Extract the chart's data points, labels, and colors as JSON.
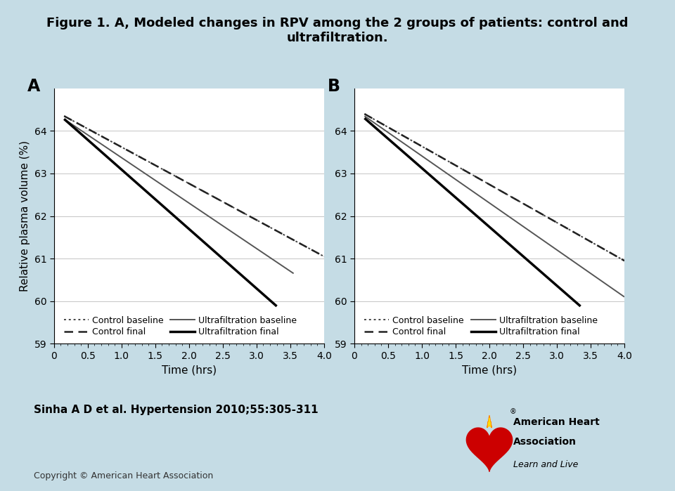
{
  "title": "Figure 1. A, Modeled changes in RPV among the 2 groups of patients: control and\nultrafiltration.",
  "background_color": "#c5dce5",
  "plot_bg": "#ffffff",
  "ylabel": "Relative plasma volume (%)",
  "xlabel": "Time (hrs)",
  "ylim": [
    59,
    65.0
  ],
  "xlim": [
    0,
    4.0
  ],
  "yticks": [
    59,
    60,
    61,
    62,
    63,
    64
  ],
  "xticks": [
    0,
    0.5,
    1.0,
    1.5,
    2.0,
    2.5,
    3.0,
    3.5,
    4.0
  ],
  "panel_A": {
    "label": "A",
    "control_baseline": {
      "x": [
        0.15,
        4.0
      ],
      "y": [
        64.35,
        61.05
      ],
      "style": "dotted",
      "color": "#444444",
      "lw": 1.4
    },
    "control_final": {
      "x": [
        0.15,
        4.0
      ],
      "y": [
        64.35,
        61.05
      ],
      "style": "dashed",
      "color": "#222222",
      "lw": 1.8
    },
    "uf_baseline": {
      "x": [
        0.15,
        3.55
      ],
      "y": [
        64.28,
        60.65
      ],
      "style": "solid",
      "color": "#555555",
      "lw": 1.4
    },
    "uf_final": {
      "x": [
        0.15,
        3.3
      ],
      "y": [
        64.28,
        59.88
      ],
      "style": "solid",
      "color": "#000000",
      "lw": 2.5
    }
  },
  "panel_B": {
    "label": "B",
    "control_baseline": {
      "x": [
        0.15,
        4.0
      ],
      "y": [
        64.4,
        60.95
      ],
      "style": "dotted",
      "color": "#444444",
      "lw": 1.4
    },
    "control_final": {
      "x": [
        0.15,
        4.0
      ],
      "y": [
        64.4,
        60.95
      ],
      "style": "dashed",
      "color": "#222222",
      "lw": 1.8
    },
    "uf_baseline": {
      "x": [
        0.15,
        4.0
      ],
      "y": [
        64.35,
        60.1
      ],
      "style": "solid",
      "color": "#555555",
      "lw": 1.4
    },
    "uf_final": {
      "x": [
        0.15,
        3.35
      ],
      "y": [
        64.3,
        59.88
      ],
      "style": "solid",
      "color": "#000000",
      "lw": 2.5
    }
  },
  "legend_rows": [
    [
      {
        "label": "Control baseline",
        "style": "dotted",
        "lw": 1.4,
        "color": "#444444"
      },
      {
        "label": "Control final",
        "style": "dashed",
        "lw": 1.8,
        "color": "#222222"
      }
    ],
    [
      {
        "label": "Ultrafiltration baseline",
        "style": "solid",
        "lw": 1.4,
        "color": "#555555"
      },
      {
        "label": "Ultrafiltration final",
        "style": "solid",
        "lw": 2.5,
        "color": "#000000"
      }
    ]
  ],
  "citation": "Sinha A D et al. Hypertension 2010;55:305-311",
  "copyright": "Copyright © American Heart Association",
  "title_fontsize": 13,
  "label_fontsize": 11,
  "tick_fontsize": 10,
  "legend_fontsize": 9,
  "citation_fontsize": 11
}
